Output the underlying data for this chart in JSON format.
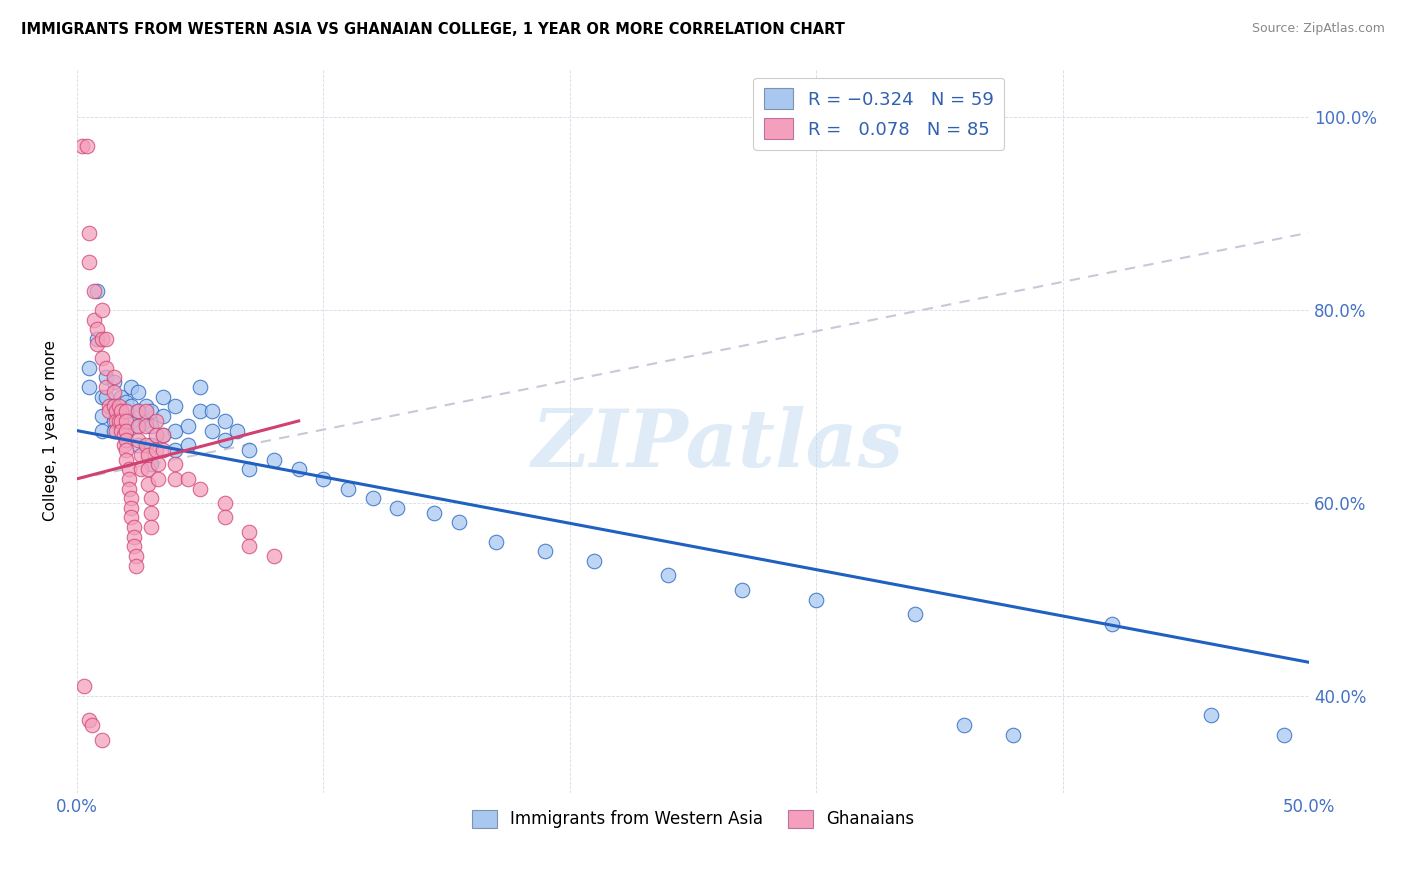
{
  "title": "IMMIGRANTS FROM WESTERN ASIA VS GHANAIAN COLLEGE, 1 YEAR OR MORE CORRELATION CHART",
  "source": "Source: ZipAtlas.com",
  "ylabel": "College, 1 year or more",
  "color_blue": "#A8C8F0",
  "color_pink": "#F4A0BC",
  "line_blue": "#2060C0",
  "line_pink": "#D04070",
  "line_gray_dashed": "#C8C8D8",
  "watermark": "ZIPatlas",
  "blue_points": [
    [
      0.005,
      0.72
    ],
    [
      0.005,
      0.74
    ],
    [
      0.008,
      0.82
    ],
    [
      0.008,
      0.77
    ],
    [
      0.01,
      0.71
    ],
    [
      0.01,
      0.69
    ],
    [
      0.01,
      0.675
    ],
    [
      0.012,
      0.73
    ],
    [
      0.012,
      0.71
    ],
    [
      0.015,
      0.725
    ],
    [
      0.015,
      0.7
    ],
    [
      0.015,
      0.685
    ],
    [
      0.015,
      0.675
    ],
    [
      0.018,
      0.71
    ],
    [
      0.018,
      0.695
    ],
    [
      0.018,
      0.68
    ],
    [
      0.02,
      0.705
    ],
    [
      0.02,
      0.695
    ],
    [
      0.02,
      0.685
    ],
    [
      0.02,
      0.675
    ],
    [
      0.022,
      0.72
    ],
    [
      0.022,
      0.7
    ],
    [
      0.022,
      0.685
    ],
    [
      0.025,
      0.715
    ],
    [
      0.025,
      0.695
    ],
    [
      0.025,
      0.68
    ],
    [
      0.025,
      0.66
    ],
    [
      0.028,
      0.7
    ],
    [
      0.028,
      0.685
    ],
    [
      0.03,
      0.695
    ],
    [
      0.03,
      0.68
    ],
    [
      0.03,
      0.66
    ],
    [
      0.03,
      0.64
    ],
    [
      0.035,
      0.71
    ],
    [
      0.035,
      0.69
    ],
    [
      0.035,
      0.67
    ],
    [
      0.04,
      0.7
    ],
    [
      0.04,
      0.675
    ],
    [
      0.04,
      0.655
    ],
    [
      0.045,
      0.68
    ],
    [
      0.045,
      0.66
    ],
    [
      0.05,
      0.72
    ],
    [
      0.05,
      0.695
    ],
    [
      0.055,
      0.695
    ],
    [
      0.055,
      0.675
    ],
    [
      0.06,
      0.685
    ],
    [
      0.06,
      0.665
    ],
    [
      0.065,
      0.675
    ],
    [
      0.07,
      0.655
    ],
    [
      0.07,
      0.635
    ],
    [
      0.08,
      0.645
    ],
    [
      0.09,
      0.635
    ],
    [
      0.1,
      0.625
    ],
    [
      0.11,
      0.615
    ],
    [
      0.12,
      0.605
    ],
    [
      0.13,
      0.595
    ],
    [
      0.145,
      0.59
    ],
    [
      0.155,
      0.58
    ],
    [
      0.17,
      0.56
    ],
    [
      0.19,
      0.55
    ],
    [
      0.21,
      0.54
    ],
    [
      0.24,
      0.525
    ],
    [
      0.27,
      0.51
    ],
    [
      0.3,
      0.5
    ],
    [
      0.34,
      0.485
    ],
    [
      0.36,
      0.37
    ],
    [
      0.38,
      0.36
    ],
    [
      0.42,
      0.475
    ],
    [
      0.46,
      0.38
    ],
    [
      0.49,
      0.36
    ]
  ],
  "pink_points": [
    [
      0.002,
      0.97
    ],
    [
      0.004,
      0.97
    ],
    [
      0.005,
      0.88
    ],
    [
      0.005,
      0.85
    ],
    [
      0.007,
      0.82
    ],
    [
      0.007,
      0.79
    ],
    [
      0.008,
      0.78
    ],
    [
      0.008,
      0.765
    ],
    [
      0.01,
      0.8
    ],
    [
      0.01,
      0.77
    ],
    [
      0.01,
      0.75
    ],
    [
      0.012,
      0.77
    ],
    [
      0.012,
      0.74
    ],
    [
      0.012,
      0.72
    ],
    [
      0.013,
      0.7
    ],
    [
      0.013,
      0.695
    ],
    [
      0.015,
      0.73
    ],
    [
      0.015,
      0.715
    ],
    [
      0.015,
      0.7
    ],
    [
      0.016,
      0.695
    ],
    [
      0.016,
      0.685
    ],
    [
      0.016,
      0.675
    ],
    [
      0.017,
      0.7
    ],
    [
      0.017,
      0.685
    ],
    [
      0.018,
      0.695
    ],
    [
      0.018,
      0.685
    ],
    [
      0.018,
      0.675
    ],
    [
      0.019,
      0.67
    ],
    [
      0.019,
      0.66
    ],
    [
      0.02,
      0.695
    ],
    [
      0.02,
      0.685
    ],
    [
      0.02,
      0.675
    ],
    [
      0.02,
      0.665
    ],
    [
      0.02,
      0.655
    ],
    [
      0.02,
      0.645
    ],
    [
      0.021,
      0.635
    ],
    [
      0.021,
      0.625
    ],
    [
      0.021,
      0.615
    ],
    [
      0.022,
      0.605
    ],
    [
      0.022,
      0.595
    ],
    [
      0.022,
      0.585
    ],
    [
      0.023,
      0.575
    ],
    [
      0.023,
      0.565
    ],
    [
      0.023,
      0.555
    ],
    [
      0.024,
      0.545
    ],
    [
      0.024,
      0.535
    ],
    [
      0.025,
      0.695
    ],
    [
      0.025,
      0.68
    ],
    [
      0.025,
      0.665
    ],
    [
      0.026,
      0.65
    ],
    [
      0.026,
      0.635
    ],
    [
      0.028,
      0.695
    ],
    [
      0.028,
      0.68
    ],
    [
      0.028,
      0.66
    ],
    [
      0.029,
      0.65
    ],
    [
      0.029,
      0.635
    ],
    [
      0.029,
      0.62
    ],
    [
      0.03,
      0.605
    ],
    [
      0.03,
      0.59
    ],
    [
      0.03,
      0.575
    ],
    [
      0.032,
      0.685
    ],
    [
      0.032,
      0.67
    ],
    [
      0.032,
      0.655
    ],
    [
      0.033,
      0.64
    ],
    [
      0.033,
      0.625
    ],
    [
      0.035,
      0.67
    ],
    [
      0.035,
      0.655
    ],
    [
      0.04,
      0.64
    ],
    [
      0.04,
      0.625
    ],
    [
      0.045,
      0.625
    ],
    [
      0.05,
      0.615
    ],
    [
      0.06,
      0.6
    ],
    [
      0.06,
      0.585
    ],
    [
      0.07,
      0.57
    ],
    [
      0.07,
      0.555
    ],
    [
      0.08,
      0.545
    ],
    [
      0.003,
      0.41
    ],
    [
      0.005,
      0.375
    ],
    [
      0.006,
      0.37
    ],
    [
      0.01,
      0.355
    ]
  ],
  "xlim": [
    0.0,
    0.5
  ],
  "ylim": [
    0.3,
    1.05
  ],
  "x_ticks": [
    0.0,
    0.1,
    0.2,
    0.3,
    0.4,
    0.5
  ],
  "x_tick_labels": [
    "0.0%",
    "",
    "",
    "",
    "",
    "50.0%"
  ],
  "y_ticks": [
    0.4,
    0.6,
    0.8,
    1.0
  ],
  "y_tick_labels": [
    "40.0%",
    "60.0%",
    "80.0%",
    "100.0%"
  ],
  "blue_trend": [
    0.0,
    0.5,
    0.675,
    0.435
  ],
  "pink_trend": [
    0.0,
    0.09,
    0.625,
    0.685
  ],
  "gray_dashed_trend": [
    0.0,
    0.5,
    0.625,
    0.88
  ]
}
